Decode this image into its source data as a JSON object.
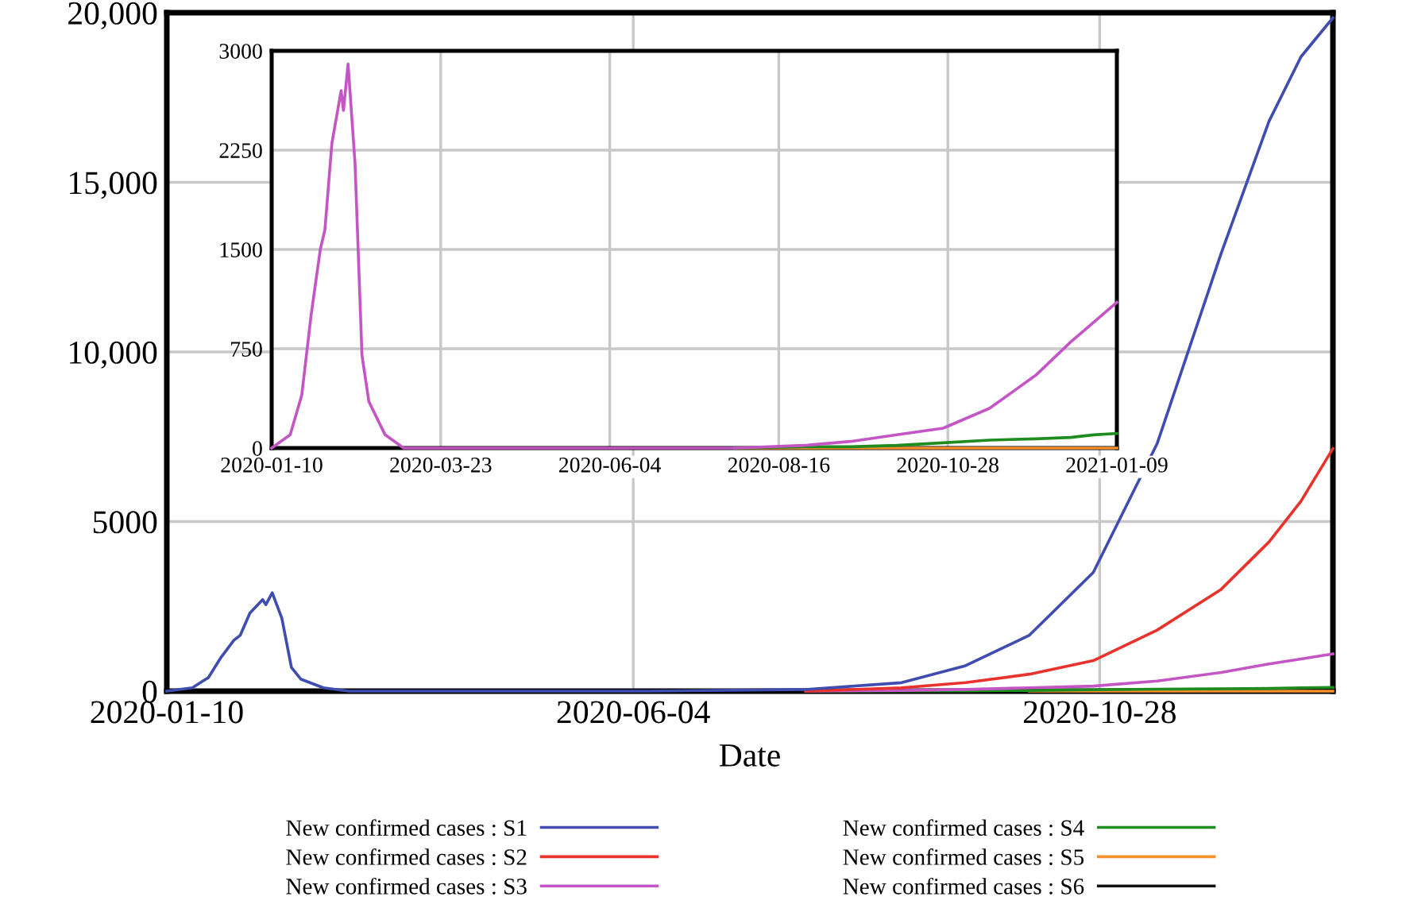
{
  "chart_data": [
    {
      "type": "line",
      "xlabel": "Date",
      "legend": "bottom",
      "grid": true,
      "x": [
        "2020-01-10",
        "2020-01-18",
        "2020-01-23",
        "2020-01-27",
        "2020-01-31",
        "2020-02-02",
        "2020-02-05",
        "2020-02-09",
        "2020-02-10",
        "2020-02-12",
        "2020-02-15",
        "2020-02-18",
        "2020-02-21",
        "2020-02-28",
        "2020-03-07",
        "2020-04-19",
        "2020-06-08",
        "2020-07-28",
        "2020-08-27",
        "2020-09-16",
        "2020-10-06",
        "2020-10-26",
        "2020-11-15",
        "2020-12-05",
        "2020-12-20",
        "2020-12-30",
        "2021-01-09"
      ],
      "xlim": [
        "2020-01-10",
        "2021-01-09"
      ],
      "xticks": [
        {
          "value": "2020-01-10",
          "label": "2020-01-10"
        },
        {
          "value": "2020-06-04",
          "label": "2020-06-04"
        },
        {
          "value": "2020-10-28",
          "label": "2020-10-28"
        }
      ],
      "ylim": [
        0,
        20000
      ],
      "yticks": [
        0,
        5000,
        {
          "value": 10000,
          "label": "10,000"
        },
        {
          "value": 15000,
          "label": "15,000"
        },
        {
          "value": 20000,
          "label": "20,000"
        }
      ],
      "series": [
        {
          "name": "New confirmed cases : S1",
          "color": "#3f4db0",
          "values": [
            0,
            100,
            400,
            1000,
            1500,
            1650,
            2300,
            2700,
            2550,
            2900,
            2150,
            700,
            350,
            100,
            0,
            0,
            0,
            50,
            250,
            750,
            1650,
            3500,
            7300,
            12900,
            16800,
            18700,
            19850
          ]
        },
        {
          "name": "New confirmed cases : S2",
          "color": "#e8322b",
          "values": [
            null,
            null,
            null,
            null,
            null,
            null,
            null,
            null,
            null,
            null,
            null,
            null,
            null,
            null,
            null,
            null,
            null,
            0,
            100,
            250,
            500,
            900,
            1800,
            3000,
            4400,
            5600,
            7150
          ]
        },
        {
          "name": "New confirmed cases : S3",
          "color": "#c455c4",
          "values": [
            null,
            null,
            null,
            null,
            null,
            null,
            null,
            null,
            null,
            null,
            null,
            null,
            null,
            null,
            null,
            null,
            null,
            0,
            20,
            50,
            100,
            150,
            300,
            550,
            800,
            950,
            1100
          ]
        },
        {
          "name": "New confirmed cases : S4",
          "color": "#1e8c1e",
          "values": [
            null,
            null,
            null,
            null,
            null,
            null,
            null,
            null,
            null,
            null,
            null,
            null,
            null,
            null,
            null,
            null,
            null,
            0,
            10,
            10,
            20,
            40,
            60,
            70,
            80,
            100,
            110
          ]
        },
        {
          "name": "New confirmed cases : S5",
          "color": "#f5902e",
          "values": [
            null,
            null,
            null,
            null,
            null,
            null,
            null,
            null,
            null,
            null,
            null,
            null,
            null,
            null,
            null,
            null,
            null,
            null,
            null,
            null,
            0,
            0,
            0,
            0,
            0,
            0,
            0
          ]
        },
        {
          "name": "New confirmed cases : S6",
          "color": "#111111",
          "values": [
            null,
            null,
            null,
            null,
            null,
            null,
            null,
            null,
            null,
            null,
            null,
            null,
            null,
            null,
            null,
            null,
            null,
            null,
            null,
            null,
            null,
            null,
            null,
            null,
            null,
            null,
            null
          ]
        }
      ]
    },
    {
      "type": "line",
      "grid": true,
      "x": [
        "2020-01-10",
        "2020-01-18",
        "2020-01-23",
        "2020-01-27",
        "2020-01-31",
        "2020-02-02",
        "2020-02-05",
        "2020-02-09",
        "2020-02-10",
        "2020-02-12",
        "2020-02-15",
        "2020-02-18",
        "2020-02-21",
        "2020-02-28",
        "2020-03-07",
        "2020-04-19",
        "2020-06-08",
        "2020-07-28",
        "2020-08-27",
        "2020-09-16",
        "2020-10-06",
        "2020-10-26",
        "2020-11-15",
        "2020-12-05",
        "2020-12-20",
        "2020-12-30",
        "2021-01-09"
      ],
      "xlim": [
        "2020-01-10",
        "2021-01-09"
      ],
      "xticks": [
        {
          "value": "2020-01-10",
          "label": "2020-01-10"
        },
        {
          "value": "2020-03-23",
          "label": "2020-03-23"
        },
        {
          "value": "2020-06-04",
          "label": "2020-06-04"
        },
        {
          "value": "2020-08-16",
          "label": "2020-08-16"
        },
        {
          "value": "2020-10-28",
          "label": "2020-10-28"
        },
        {
          "value": "2021-01-09",
          "label": "2021-01-09"
        }
      ],
      "ylim": [
        0,
        3000
      ],
      "yticks": [
        0,
        750,
        1500,
        2250,
        3000
      ],
      "series": [
        {
          "color": "#c455c4",
          "values": [
            0,
            100,
            400,
            1000,
            1500,
            1650,
            2300,
            2700,
            2550,
            2900,
            2150,
            700,
            350,
            100,
            0,
            0,
            0,
            0,
            20,
            50,
            100,
            150,
            300,
            550,
            800,
            950,
            1100
          ]
        },
        {
          "color": "#1e8c1e",
          "values": [
            null,
            null,
            null,
            null,
            null,
            null,
            null,
            null,
            null,
            null,
            null,
            null,
            null,
            null,
            null,
            null,
            null,
            0,
            10,
            10,
            20,
            40,
            60,
            70,
            80,
            100,
            110
          ]
        },
        {
          "color": "#f5902e",
          "values": [
            null,
            null,
            null,
            null,
            null,
            null,
            null,
            null,
            null,
            null,
            null,
            null,
            null,
            null,
            null,
            null,
            null,
            0,
            0,
            0,
            0,
            0,
            0,
            0,
            0,
            0,
            0
          ]
        }
      ]
    }
  ]
}
